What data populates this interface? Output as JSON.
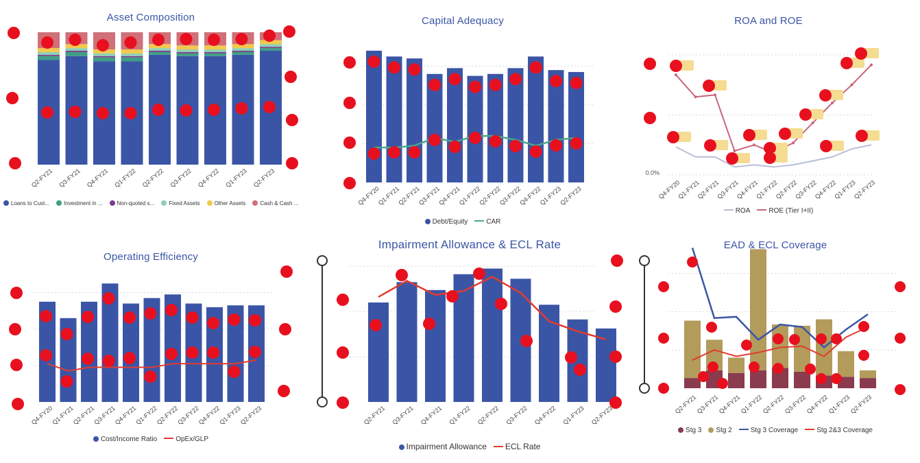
{
  "colors": {
    "title": "#3b55a6",
    "blue": "#3b55a6",
    "teal": "#3f9f86",
    "purple": "#7a3e8c",
    "mint": "#8fd0b8",
    "yellow": "#f2c94c",
    "rose": "#d07078",
    "green_line": "#4aa58c",
    "red_line": "#e23b2e",
    "gray_line": "#b8bfd6",
    "pink_line": "#c9667a",
    "gold": "#b39b5c",
    "maroon": "#8a3b4e",
    "redaction": "#e8101e"
  },
  "chart_data": [
    {
      "id": "asset",
      "type": "bar",
      "stacked": true,
      "title": "Asset Composition",
      "categories": [
        "Q2-FY21",
        "Q3-FY21",
        "Q4-FY21",
        "Q1-FY22",
        "Q2-FY22",
        "Q3-FY22",
        "Q4-FY22",
        "Q1-FY23",
        "Q2-FY23"
      ],
      "series": [
        {
          "name": "Loans to Cust...",
          "values": [
            79,
            82,
            78,
            78,
            83,
            82,
            82,
            83,
            86
          ]
        },
        {
          "name": "Investment in ...",
          "values": [
            3,
            3,
            3,
            3,
            2,
            2,
            2,
            2,
            2
          ]
        },
        {
          "name": "Non-quoted s...",
          "values": [
            1,
            1,
            1,
            1,
            1,
            1,
            1,
            1,
            1
          ]
        },
        {
          "name": "Fixed Assets",
          "values": [
            2,
            2,
            2,
            2,
            2,
            2,
            2,
            2,
            2
          ]
        },
        {
          "name": "Other Assets",
          "values": [
            3,
            3,
            3,
            3,
            3,
            3,
            3,
            3,
            3
          ]
        },
        {
          "name": "Cash & Cash ...",
          "values": [
            12,
            9,
            13,
            13,
            9,
            10,
            10,
            9,
            6
          ]
        }
      ],
      "ylim": [
        0,
        100
      ],
      "legend": "bottom"
    },
    {
      "id": "capital",
      "type": "bar",
      "title": "Capital Adequacy",
      "categories": [
        "Q4-FY20",
        "Q1-FY21",
        "Q2-FY21",
        "Q3-FY21",
        "Q4-FY21",
        "Q1-FY22",
        "Q2-FY22",
        "Q3-FY22",
        "Q4-FY22",
        "Q1-FY23",
        "Q2-FY23"
      ],
      "series": [
        {
          "name": "Debt/Equity",
          "kind": "bar",
          "values": [
            6.8,
            6.5,
            6.4,
            5.6,
            5.9,
            5.5,
            5.6,
            5.9,
            6.5,
            5.8,
            5.7
          ]
        },
        {
          "name": "CAR",
          "kind": "line",
          "values": [
            1.8,
            1.8,
            1.9,
            2.3,
            2.1,
            2.4,
            2.4,
            2.2,
            1.9,
            2.2,
            2.3
          ]
        }
      ],
      "ylim": [
        0,
        8
      ],
      "legend": "bottom"
    },
    {
      "id": "roa",
      "type": "line",
      "title": "ROA and ROE",
      "categories": [
        "Q4-FY20",
        "Q1-FY21",
        "Q2-FY21",
        "Q3-FY21",
        "Q4-FY21",
        "Q1-FY22",
        "Q2-FY22",
        "Q3-FY22",
        "Q4-FY22",
        "Q1-FY23",
        "Q2-FY23"
      ],
      "series": [
        {
          "name": "ROA",
          "values": [
            1.4,
            0.9,
            0.9,
            0.4,
            0.5,
            0.4,
            0.5,
            0.7,
            0.9,
            1.3,
            1.5
          ]
        },
        {
          "name": "ROE (Tier I+II)",
          "values": [
            5.0,
            3.9,
            4.0,
            1.2,
            1.5,
            1.1,
            1.6,
            2.6,
            3.6,
            4.5,
            5.5
          ]
        }
      ],
      "ytick_labels": [
        "0.0%"
      ],
      "ylim": [
        0,
        6
      ],
      "legend": "bottom"
    },
    {
      "id": "opex",
      "type": "bar",
      "title": "Operating Efficiency",
      "categories": [
        "Q4-FY20",
        "Q1-FY21",
        "Q2-FY21",
        "Q3-FY21",
        "Q4-FY21",
        "Q1-FY22",
        "Q2-FY22",
        "Q3-FY22",
        "Q4-FY22",
        "Q1-FY23",
        "Q2-FY23"
      ],
      "series": [
        {
          "name": "Cost/Income Ratio",
          "kind": "bar",
          "values": [
            55,
            46,
            55,
            65,
            54,
            57,
            59,
            54,
            52,
            53,
            53
          ]
        },
        {
          "name": "OpEx/GLP",
          "kind": "line",
          "values": [
            21,
            17,
            19,
            19,
            19,
            19,
            21,
            21,
            21,
            21,
            23
          ]
        }
      ],
      "ylim": [
        0,
        70
      ],
      "legend": "bottom"
    },
    {
      "id": "impair",
      "type": "bar",
      "title": "Impairment Allowance & ECL Rate",
      "categories": [
        "Q2-FY21",
        "Q3-FY21",
        "Q4-FY21",
        "Q1-FY22",
        "Q2-FY22",
        "Q3-FY22",
        "Q4-FY22",
        "Q1-FY23",
        "Q2-FY23"
      ],
      "series": [
        {
          "name": "Impairment Allowance",
          "kind": "bar",
          "values": [
            880,
            1060,
            990,
            1130,
            1180,
            1090,
            860,
            730,
            650
          ]
        },
        {
          "name": "ECL Rate",
          "kind": "line",
          "values": [
            5.2,
            6.0,
            5.3,
            5.5,
            6.2,
            5.4,
            4.0,
            3.5,
            3.1
          ]
        }
      ],
      "ylim": [
        0,
        1250
      ],
      "legend": "bottom"
    },
    {
      "id": "ead",
      "type": "bar",
      "stacked": true,
      "title": "EAD & ECL Coverage",
      "categories": [
        "Q2-FY21",
        "Q3-FY21",
        "Q4-FY21",
        "Q1-FY22",
        "Q2-FY22",
        "Q3-FY22",
        "Q4-FY22",
        "Q1-FY23",
        "Q2-FY23"
      ],
      "series": [
        {
          "name": "Stg 3",
          "kind": "bar",
          "values": [
            8,
            14,
            12,
            14,
            16,
            13,
            10,
            9,
            8
          ]
        },
        {
          "name": "Stg 2",
          "kind": "bar",
          "values": [
            45,
            24,
            12,
            95,
            34,
            36,
            44,
            20,
            6
          ]
        },
        {
          "name": "Stg 3 Coverage",
          "kind": "line",
          "values": [
            110,
            55,
            56,
            38,
            50,
            48,
            32,
            46,
            58
          ]
        },
        {
          "name": "Stg 2&3 Coverage",
          "kind": "line",
          "values": [
            22,
            30,
            25,
            28,
            32,
            33,
            25,
            40,
            48
          ]
        }
      ],
      "ylim": [
        0,
        120
      ],
      "legend": "bottom"
    }
  ]
}
